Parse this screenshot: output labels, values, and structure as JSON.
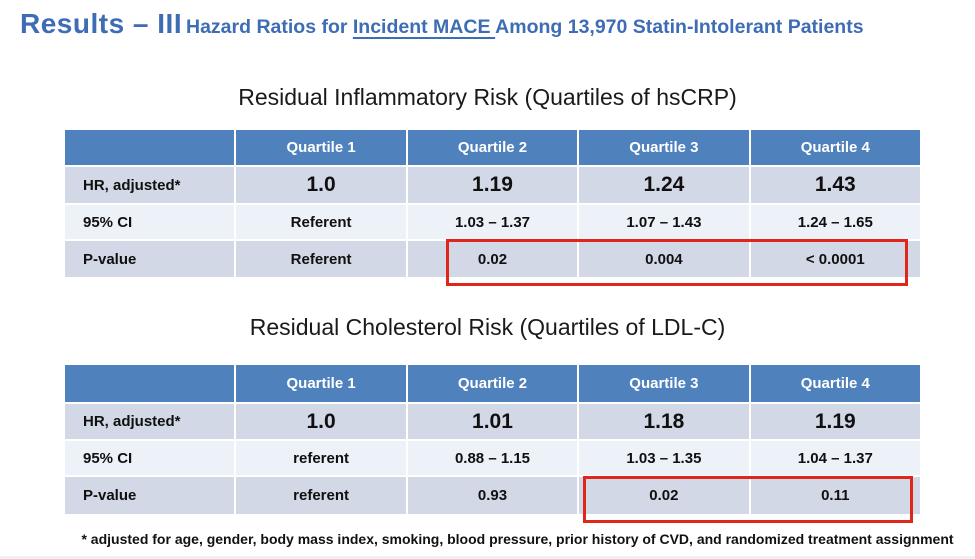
{
  "slide": {
    "title": "Results – III",
    "subtitle_prefix": "Hazard Ratios for ",
    "subtitle_underlined": "Incident MACE ",
    "subtitle_suffix": "Among 13,970 Statin-Intolerant Patients",
    "footnote": "* adjusted for age, gender, body mass index, smoking, blood pressure, prior history of CVD, and randomized treatment assignment"
  },
  "tables": [
    {
      "title": "Residual Inflammatory Risk (Quartiles of hsCRP)",
      "columns": [
        "",
        "Quartile 1",
        "Quartile 2",
        "Quartile 3",
        "Quartile 4"
      ],
      "rows": [
        {
          "label": "HR, adjusted*",
          "values": [
            "1.0",
            "1.19",
            "1.24",
            "1.43"
          ]
        },
        {
          "label": "95% CI",
          "values": [
            "Referent",
            "1.03 – 1.37",
            "1.07 – 1.43",
            "1.24 – 1.65"
          ]
        },
        {
          "label": "P-value",
          "values": [
            "Referent",
            "0.02",
            "0.004",
            "< 0.0001"
          ]
        }
      ],
      "highlight": "red box around P-value cells of Quartile 2, Quartile 3, Quartile 4"
    },
    {
      "title": "Residual Cholesterol Risk (Quartiles of LDL-C)",
      "columns": [
        "",
        "Quartile 1",
        "Quartile 2",
        "Quartile 3",
        "Quartile 4"
      ],
      "rows": [
        {
          "label": "HR, adjusted*",
          "values": [
            "1.0",
            "1.01",
            "1.18",
            "1.19"
          ]
        },
        {
          "label": "95% CI",
          "values": [
            "referent",
            "0.88 – 1.15",
            "1.03 – 1.35",
            "1.04 – 1.37"
          ]
        },
        {
          "label": "P-value",
          "values": [
            "referent",
            "0.93",
            "0.02",
            "0.11"
          ]
        }
      ],
      "highlight": "red box around P-value cells of Quartile 3, Quartile 4"
    }
  ],
  "colors": {
    "accent_title": "#3e6db5",
    "table_header_bg": "#4f81bd",
    "band_dark": "#d2d8e6",
    "band_light": "#edf1f8",
    "highlight_border": "#de261b"
  }
}
